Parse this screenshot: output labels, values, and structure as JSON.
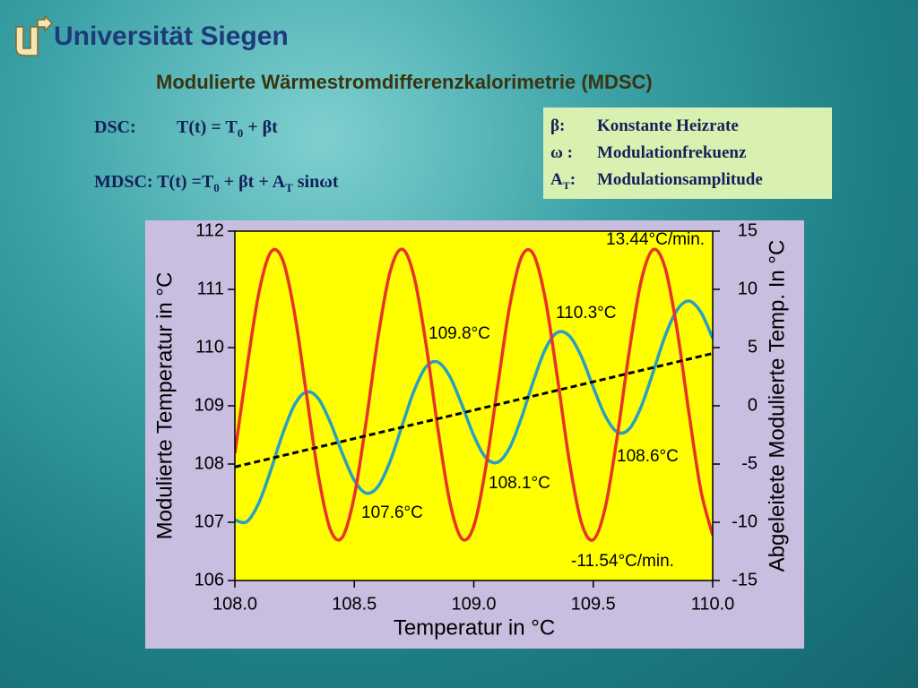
{
  "header": {
    "institution": "Universität Siegen",
    "title": "Modulierte Wärmestromdifferenzkalorimetrie (MDSC)"
  },
  "formulas": [
    {
      "label": "DSC:",
      "parts": [
        "T(t) = T",
        "0",
        " + βt"
      ]
    },
    {
      "label": "MDSC:",
      "parts": [
        "T(t) =T",
        "0",
        " + βt + A",
        "T",
        " sinωt"
      ]
    }
  ],
  "symbol_box": [
    {
      "symbol": [
        "β:"
      ],
      "text": "Konstante Heizrate"
    },
    {
      "symbol": [
        "ω :"
      ],
      "text": "Modulationfrekuenz"
    },
    {
      "symbol": [
        "A",
        "T",
        ":"
      ],
      "text": "Modulationsamplitude"
    }
  ],
  "chart_data": {
    "type": "line",
    "x_label": "Temperatur in °C",
    "y_label": "Modulierte Temperatur in °C",
    "y2_label": "Abgeleitete Modulierte Temp. In °C",
    "x": [
      108.0,
      108.05,
      108.1,
      108.15,
      108.2,
      108.25,
      108.3,
      108.35,
      108.4,
      108.45,
      108.5,
      108.55,
      108.6,
      108.65,
      108.7,
      108.75,
      108.8,
      108.85,
      108.9,
      108.95,
      109.0,
      109.05,
      109.1,
      109.15,
      109.2,
      109.25,
      109.3,
      109.35,
      109.4,
      109.45,
      109.5,
      109.55,
      109.6,
      109.65,
      109.7,
      109.75,
      109.8,
      109.85,
      109.9,
      109.95,
      110.0
    ],
    "series": [
      {
        "color": "#2a9fc4",
        "values": [
          107.04,
          107.01,
          107.33,
          107.89,
          108.52,
          109.02,
          109.24,
          109.12,
          108.71,
          108.18,
          107.72,
          107.5,
          107.62,
          108.05,
          108.66,
          109.26,
          109.67,
          109.75,
          109.5,
          109.02,
          108.49,
          108.11,
          108.03,
          108.28,
          108.8,
          109.43,
          109.98,
          110.26,
          110.2,
          109.85,
          109.32,
          108.83,
          108.55,
          108.6,
          108.98,
          109.57,
          110.19,
          110.64,
          110.8,
          110.61,
          110.16
        ]
      },
      {
        "color": "#e8322a",
        "axis": "y2",
        "values": [
          -4.08,
          3.18,
          9.66,
          13.19,
          12.53,
          7.93,
          0.94,
          -6.04,
          -10.64,
          -11.28,
          -7.74,
          -1.28,
          6.0,
          11.53,
          13.45,
          11.1,
          5.3,
          -2.0,
          -8.29,
          -11.41,
          -10.33,
          -5.31,
          1.7,
          8.53,
          12.8,
          13.0,
          9.1,
          2.41,
          -4.76,
          -10.0,
          -11.5,
          -8.76,
          -2.7,
          4.59,
          10.66,
          13.4,
          11.9,
          6.65,
          -0.54,
          -7.21,
          -11.11
        ]
      },
      {
        "color": "#000000",
        "dashed": true,
        "x": [
          108.0,
          110.0
        ],
        "values": [
          107.95,
          109.9
        ]
      }
    ],
    "annotations": [
      "13.44°C/min.",
      "109.8°C",
      "110.3°C",
      "107.6°C",
      "108.1°C",
      "108.6°C",
      "-11.54°C/min."
    ],
    "xlim": [
      108.0,
      110.0
    ],
    "xticks": [
      {
        "value": 108.0,
        "label": "108.0"
      },
      {
        "value": 108.5,
        "label": "108.5"
      },
      {
        "value": 109.0,
        "label": "109.0"
      },
      {
        "value": 109.5,
        "label": "109.5"
      },
      {
        "value": 110.0,
        "label": "110.0"
      }
    ],
    "ylim": [
      106,
      112
    ],
    "yticks": [
      106,
      107,
      108,
      109,
      110,
      111,
      112
    ],
    "y2lim": [
      -15,
      15
    ],
    "y2ticks": [
      -15,
      -10,
      -5,
      0,
      5,
      10,
      15
    ],
    "plot_background": "#ffff00"
  }
}
